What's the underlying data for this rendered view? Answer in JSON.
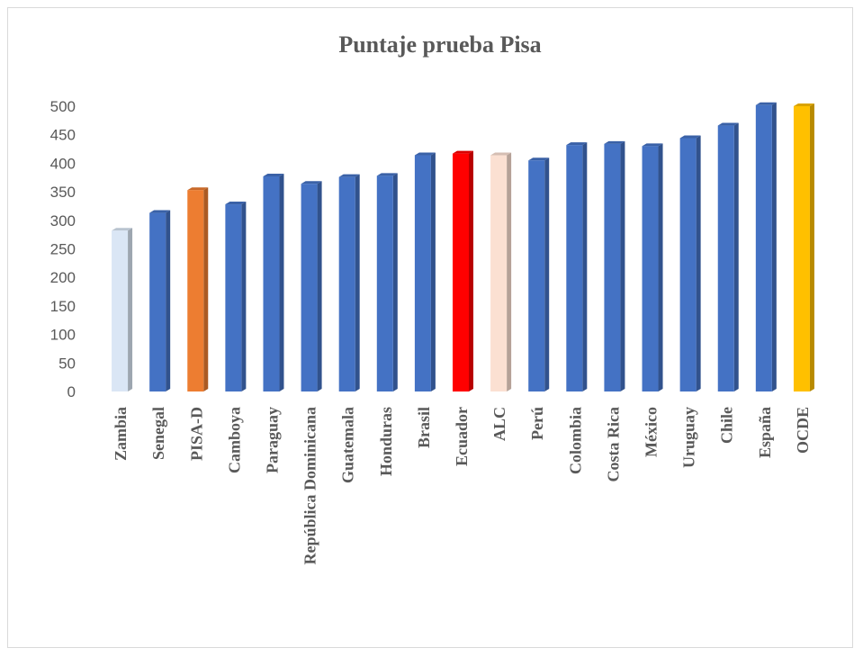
{
  "chart_data": {
    "type": "bar",
    "title": "Puntaje prueba Pisa",
    "xlabel": "",
    "ylabel": "",
    "ylim": [
      0,
      500
    ],
    "yticks": [
      0,
      50,
      100,
      150,
      200,
      250,
      300,
      350,
      400,
      450,
      500
    ],
    "grid": false,
    "legend": "none",
    "categories": [
      "Zambia",
      "Senegal",
      "PISA-D",
      "Camboya",
      "Paraguay",
      "República Dominicana",
      "Guatemala",
      "Honduras",
      "Brasil",
      "Ecuador",
      "ALC",
      "Perú",
      "Colombia",
      "Costa Rica",
      "México",
      "Uruguay",
      "Chile",
      "España",
      "OCDE"
    ],
    "values": [
      282,
      313,
      353,
      328,
      377,
      364,
      376,
      378,
      414,
      417,
      414,
      405,
      432,
      434,
      430,
      444,
      466,
      502,
      500
    ],
    "colors": [
      "#dae6f5",
      "#4472c4",
      "#ed7d31",
      "#4472c4",
      "#4472c4",
      "#4472c4",
      "#4472c4",
      "#4472c4",
      "#4472c4",
      "#ff0000",
      "#fbe0d2",
      "#4472c4",
      "#4472c4",
      "#4472c4",
      "#4472c4",
      "#4472c4",
      "#4472c4",
      "#4472c4",
      "#ffc000"
    ]
  }
}
